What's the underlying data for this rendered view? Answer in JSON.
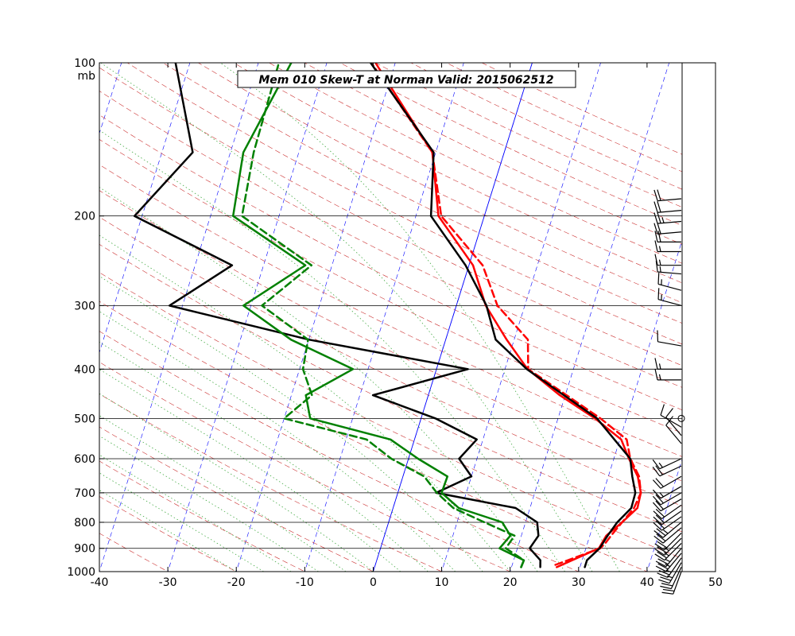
{
  "chart_data": {
    "type": "line",
    "title": "Mem 010  Skew-T at Norman   Valid: 2015062512",
    "xlabel": "",
    "ylabel": "",
    "yunit": "mb",
    "xlim": [
      -40,
      50
    ],
    "ylim": [
      1000,
      100
    ],
    "yscale": "log",
    "skew": true,
    "x_ticks": [
      -40,
      -30,
      -20,
      -10,
      0,
      10,
      20,
      30,
      40,
      50
    ],
    "y_ticks": [
      100,
      200,
      300,
      400,
      500,
      600,
      700,
      800,
      900,
      1000
    ],
    "grid": true,
    "colors": {
      "temperature": "#ff0000",
      "dewpoint": "#008000",
      "environment": "#000000",
      "isotherm": "#0000ff",
      "dry_adiabat": "#cc3333",
      "moist_adiabat": "#44aa44",
      "highlight_isotherm": "#0000ff"
    },
    "series": [
      {
        "id": "temp-dashed",
        "style": "dashed",
        "color": "#ff0000",
        "points": [
          [
            26.3,
            970
          ],
          [
            32.1,
            900
          ],
          [
            32.6,
            880
          ],
          [
            33.1,
            850
          ],
          [
            34.1,
            800
          ],
          [
            35.2,
            750
          ],
          [
            35.5,
            700
          ],
          [
            34.5,
            650
          ],
          [
            32.4,
            600
          ],
          [
            31.0,
            550
          ],
          [
            26.2,
            500
          ],
          [
            20.2,
            450
          ],
          [
            13.4,
            400
          ],
          [
            12.0,
            350
          ],
          [
            6.0,
            300
          ],
          [
            2.0,
            250
          ],
          [
            -6.3,
            200
          ],
          [
            -10.5,
            150
          ],
          [
            -23.5,
            100
          ]
        ]
      },
      {
        "id": "temp-solid",
        "style": "solid",
        "color": "#ff0000",
        "points": [
          [
            26.6,
            980
          ],
          [
            31.9,
            900
          ],
          [
            32.4,
            850
          ],
          [
            34.1,
            800
          ],
          [
            35.7,
            750
          ],
          [
            35.5,
            700
          ],
          [
            34.3,
            650
          ],
          [
            32.2,
            600
          ],
          [
            30.2,
            550
          ],
          [
            25.4,
            500
          ],
          [
            19.2,
            450
          ],
          [
            13.3,
            400
          ],
          [
            8.9,
            350
          ],
          [
            4.3,
            300
          ],
          [
            0.6,
            250
          ],
          [
            -6.7,
            200
          ],
          [
            -10.5,
            150
          ],
          [
            -22.9,
            100
          ]
        ]
      },
      {
        "id": "env-right",
        "style": "solid",
        "color": "#000000",
        "points": [
          [
            30.7,
            980
          ],
          [
            30.7,
            950
          ],
          [
            32.0,
            900
          ],
          [
            32.6,
            850
          ],
          [
            33.4,
            800
          ],
          [
            34.8,
            750
          ],
          [
            34.7,
            700
          ],
          [
            33.5,
            650
          ],
          [
            32.4,
            600
          ],
          [
            29.2,
            550
          ],
          [
            25.7,
            500
          ],
          [
            19.8,
            450
          ],
          [
            13.2,
            400
          ],
          [
            7.3,
            350
          ],
          [
            4.4,
            300
          ],
          [
            -0.5,
            250
          ],
          [
            -7.8,
            200
          ],
          [
            -10.3,
            150
          ],
          [
            -23.6,
            100
          ]
        ]
      },
      {
        "id": "env-left",
        "style": "solid",
        "color": "#000000",
        "points": [
          [
            24.2,
            980
          ],
          [
            23.9,
            950
          ],
          [
            21.8,
            900
          ],
          [
            22.5,
            850
          ],
          [
            21.7,
            800
          ],
          [
            17.9,
            750
          ],
          [
            5.6,
            700
          ],
          [
            10.0,
            650
          ],
          [
            7.4,
            600
          ],
          [
            9.1,
            550
          ],
          [
            2.1,
            500
          ],
          [
            -8.1,
            450
          ],
          [
            4.6,
            400
          ],
          [
            -20.0,
            350
          ],
          [
            -41.9,
            300
          ],
          [
            -34.6,
            250
          ],
          [
            -51.1,
            200
          ],
          [
            -45.5,
            150
          ],
          [
            -52.1,
            100
          ]
        ]
      },
      {
        "id": "dew-solid",
        "style": "solid",
        "color": "#008000",
        "points": [
          [
            21.4,
            980
          ],
          [
            21.5,
            950
          ],
          [
            17.4,
            900
          ],
          [
            18.4,
            850
          ],
          [
            16.6,
            800
          ],
          [
            9.6,
            750
          ],
          [
            6.4,
            700
          ],
          [
            6.5,
            650
          ],
          [
            1.4,
            600
          ],
          [
            -3.5,
            550
          ],
          [
            -16.2,
            500
          ],
          [
            -17.9,
            450
          ],
          [
            -12.2,
            400
          ],
          [
            -22.6,
            350
          ],
          [
            -31.1,
            300
          ],
          [
            -23.9,
            250
          ],
          [
            -36.7,
            200
          ],
          [
            -38.1,
            150
          ],
          [
            -35.2,
            100
          ]
        ]
      },
      {
        "id": "dew-dashed",
        "style": "dashed",
        "color": "#008000",
        "points": [
          [
            21.4,
            980
          ],
          [
            21.5,
            950
          ],
          [
            18.3,
            900
          ],
          [
            19.0,
            850
          ],
          [
            14.0,
            800
          ],
          [
            8.8,
            750
          ],
          [
            5.7,
            700
          ],
          [
            3.1,
            650
          ],
          [
            -2.5,
            600
          ],
          [
            -7.0,
            550
          ],
          [
            -20.0,
            500
          ],
          [
            -17.0,
            450
          ],
          [
            -19.5,
            400
          ],
          [
            -20.1,
            350
          ],
          [
            -28.4,
            300
          ],
          [
            -23.0,
            250
          ],
          [
            -35.4,
            200
          ],
          [
            -36.6,
            150
          ],
          [
            -37.0,
            100
          ]
        ]
      }
    ],
    "wind_barbs": [
      {
        "p": 1000,
        "dir": 200,
        "kt": 20
      },
      {
        "p": 980,
        "dir": 205,
        "kt": 20
      },
      {
        "p": 960,
        "dir": 210,
        "kt": 25
      },
      {
        "p": 940,
        "dir": 215,
        "kt": 25
      },
      {
        "p": 920,
        "dir": 220,
        "kt": 25
      },
      {
        "p": 900,
        "dir": 220,
        "kt": 25
      },
      {
        "p": 880,
        "dir": 225,
        "kt": 25
      },
      {
        "p": 860,
        "dir": 225,
        "kt": 25
      },
      {
        "p": 840,
        "dir": 225,
        "kt": 20
      },
      {
        "p": 820,
        "dir": 230,
        "kt": 20
      },
      {
        "p": 800,
        "dir": 230,
        "kt": 25
      },
      {
        "p": 780,
        "dir": 235,
        "kt": 20
      },
      {
        "p": 760,
        "dir": 235,
        "kt": 20
      },
      {
        "p": 740,
        "dir": 235,
        "kt": 20
      },
      {
        "p": 720,
        "dir": 240,
        "kt": 20
      },
      {
        "p": 700,
        "dir": 240,
        "kt": 20
      },
      {
        "p": 680,
        "dir": 240,
        "kt": 15
      },
      {
        "p": 650,
        "dir": 240,
        "kt": 20
      },
      {
        "p": 620,
        "dir": 245,
        "kt": 20
      },
      {
        "p": 600,
        "dir": 245,
        "kt": 15
      },
      {
        "p": 560,
        "dir": 320,
        "kt": 10
      },
      {
        "p": 540,
        "dir": 320,
        "kt": 10
      },
      {
        "p": 520,
        "dir": 300,
        "kt": 10
      },
      {
        "p": 500,
        "dir": 0,
        "kt": 0
      },
      {
        "p": 420,
        "dir": 270,
        "kt": 15
      },
      {
        "p": 400,
        "dir": 270,
        "kt": 15
      },
      {
        "p": 360,
        "dir": 280,
        "kt": 10
      },
      {
        "p": 300,
        "dir": 285,
        "kt": 15
      },
      {
        "p": 280,
        "dir": 285,
        "kt": 15
      },
      {
        "p": 260,
        "dir": 275,
        "kt": 15
      },
      {
        "p": 250,
        "dir": 270,
        "kt": 15
      },
      {
        "p": 235,
        "dir": 270,
        "kt": 15
      },
      {
        "p": 225,
        "dir": 270,
        "kt": 20
      },
      {
        "p": 215,
        "dir": 265,
        "kt": 20
      },
      {
        "p": 205,
        "dir": 265,
        "kt": 25
      },
      {
        "p": 195,
        "dir": 265,
        "kt": 20
      },
      {
        "p": 185,
        "dir": 265,
        "kt": 20
      }
    ]
  }
}
